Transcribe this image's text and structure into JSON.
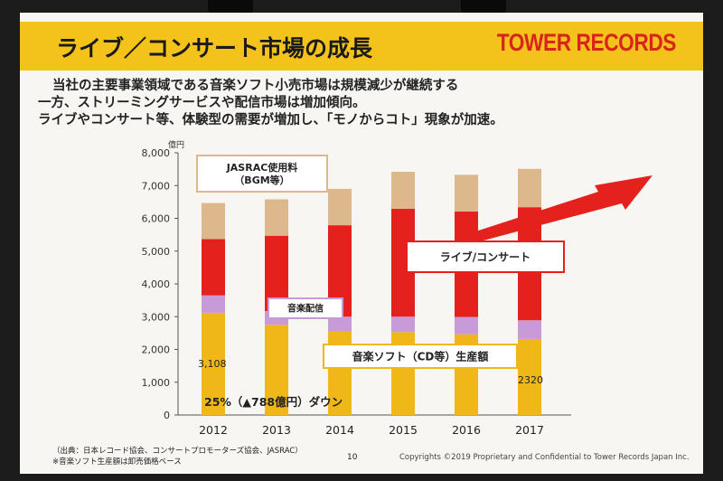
{
  "slide": {
    "title": "ライブ／コンサート市場の成長",
    "brand": "TOWER RECORDS",
    "intro": [
      "当社の主要事業領域である音楽ソフト小売市場は規模減少が継続する",
      "一方、ストリーミングサービスや配信市場は増加傾向。",
      "ライブやコンサート等、体験型の需要が増加し、「モノからコト」現象が加速。"
    ],
    "footnotes": [
      "（出典：日本レコード協会、コンサートプロモーターズ協会、JASRAC）",
      "※音楽ソフト生産額は卸売価格ベース"
    ],
    "page_number": "10",
    "copyright": "Copyrights ©2019  Proprietary and Confidential to Tower Records Japan Inc."
  },
  "colors": {
    "cd": "#efb818",
    "streaming": "#c99ad8",
    "live": "#e5211d",
    "jasrac": "#ddb88c",
    "title_bar": "#f3c21b",
    "brand": "#d9241c",
    "arrow": "#e5211d"
  },
  "chart_data": {
    "type": "bar",
    "stacked": true,
    "unit_label": "億円",
    "ylim": [
      0,
      8000
    ],
    "yticks": [
      "0",
      "1,000",
      "2,000",
      "3,000",
      "4,000",
      "5,000",
      "6,000",
      "7,000",
      "8,000"
    ],
    "categories": [
      "2012",
      "2013",
      "2014",
      "2015",
      "2016",
      "2017"
    ],
    "series": [
      {
        "name": "音楽ソフト（CD等）生産額",
        "key": "cd",
        "values": [
          3108,
          2750,
          2550,
          2530,
          2460,
          2320
        ]
      },
      {
        "name": "音楽配信",
        "key": "streaming",
        "values": [
          540,
          420,
          450,
          470,
          530,
          570
        ]
      },
      {
        "name": "ライブ/コンサート",
        "key": "live",
        "values": [
          1720,
          2300,
          2790,
          3290,
          3220,
          3450
        ]
      },
      {
        "name": "JASRAC使用料（BGM等）",
        "key": "jasrac",
        "values": [
          1100,
          1110,
          1110,
          1130,
          1120,
          1170
        ]
      }
    ],
    "legend_labels": {
      "jasrac": [
        "JASRAC使用料",
        "（BGM等）"
      ],
      "streaming": [
        "音楽配信"
      ],
      "live": [
        "ライブ/コンサート"
      ],
      "cd": [
        "音楽ソフト（CD等）生産額"
      ]
    },
    "annotations": {
      "value_2012": "3,108",
      "value_2017": "2320",
      "decline": "25%（▲788億円）ダウン"
    },
    "grid": false
  }
}
